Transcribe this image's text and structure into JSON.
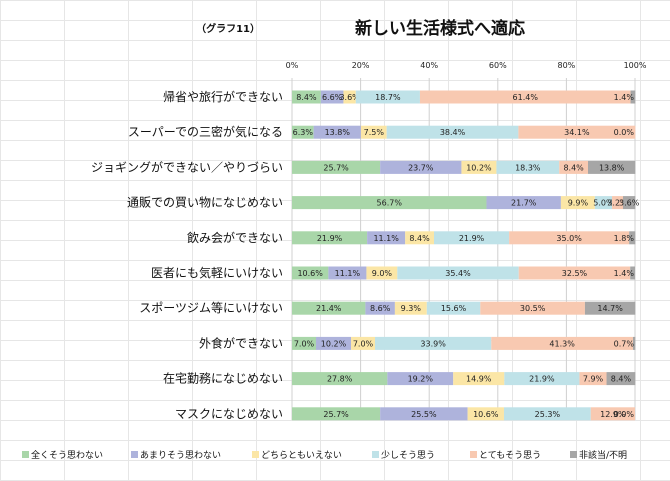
{
  "chart_data": {
    "type": "bar",
    "stacked": true,
    "orientation": "horizontal",
    "subtitle": "（グラフ11）",
    "title": "新しい生活様式へ適応",
    "x_ticks": [
      "0%",
      "20%",
      "40%",
      "60%",
      "80%",
      "100%"
    ],
    "xlim": [
      0,
      100
    ],
    "grid": true,
    "legend_position": "bottom",
    "categories": [
      "帰省や旅行ができない",
      "スーパーでの三密が気になる",
      "ジョギングができない／やりづらい",
      "通販での買い物になじめない",
      "飲み会ができない",
      "医者にも気軽にいけない",
      "スポーツジム等にいけない",
      "外食ができない",
      "在宅勤務になじめない",
      "マスクになじめない"
    ],
    "series": [
      {
        "name": "全くそう思わない",
        "color": "#a9d6a9",
        "values": [
          8.4,
          6.3,
          25.7,
          56.7,
          21.9,
          10.6,
          21.4,
          7.0,
          27.8,
          25.7
        ],
        "labels": [
          "8.4%",
          "6.3%",
          "25.7%",
          "56.7%",
          "21.9%",
          "10.6%",
          "21.4%",
          "7.0%",
          "27.8%",
          "25.7%"
        ]
      },
      {
        "name": "あまりそう思わない",
        "color": "#aeb3dc",
        "values": [
          6.6,
          13.8,
          23.7,
          21.7,
          11.1,
          11.1,
          8.6,
          10.2,
          19.2,
          25.5
        ],
        "labels": [
          "6.6%",
          "13.8%",
          "23.7%",
          "21.7%",
          "11.1%",
          "11.1%",
          "8.6%",
          "10.2%",
          "19.2%",
          "25.5%"
        ]
      },
      {
        "name": "どちらともいえない",
        "color": "#fbe6a6",
        "values": [
          3.6,
          7.5,
          10.2,
          9.9,
          8.4,
          9.0,
          9.3,
          7.0,
          14.9,
          10.6
        ],
        "labels": [
          "3.6%",
          "7.5%",
          "10.2%",
          "9.9%",
          "8.4%",
          "9.0%",
          "9.3%",
          "7.0%",
          "14.9%",
          "10.6%"
        ]
      },
      {
        "name": "少しそう思う",
        "color": "#bfe2e8",
        "values": [
          18.7,
          38.4,
          18.3,
          5.0,
          21.9,
          35.4,
          15.6,
          33.9,
          21.9,
          25.3
        ],
        "labels": [
          "18.7%",
          "38.4%",
          "18.3%",
          "5.0%",
          "21.9%",
          "35.4%",
          "15.6%",
          "33.9%",
          "21.9%",
          "25.3%"
        ]
      },
      {
        "name": "とてもそう思う",
        "color": "#f8c9b1",
        "values": [
          61.4,
          34.1,
          8.4,
          3.2,
          35.0,
          32.5,
          30.5,
          41.3,
          7.9,
          12.9
        ],
        "labels": [
          "61.4%",
          "34.1%",
          "8.4%",
          "3.2%",
          "35.0%",
          "32.5%",
          "30.5%",
          "41.3%",
          "7.9%",
          "12.9%"
        ]
      },
      {
        "name": "非該当/不明",
        "color": "#a6a6a6",
        "values": [
          1.4,
          0.0,
          13.8,
          3.6,
          1.8,
          1.4,
          14.7,
          0.7,
          8.4,
          0.0
        ],
        "labels": [
          "1.4%",
          "0.0%",
          "13.8%",
          "3.6%",
          "1.8%",
          "1.4%",
          "14.7%",
          "0.7%",
          "8.4%",
          "0.0%"
        ]
      }
    ]
  }
}
